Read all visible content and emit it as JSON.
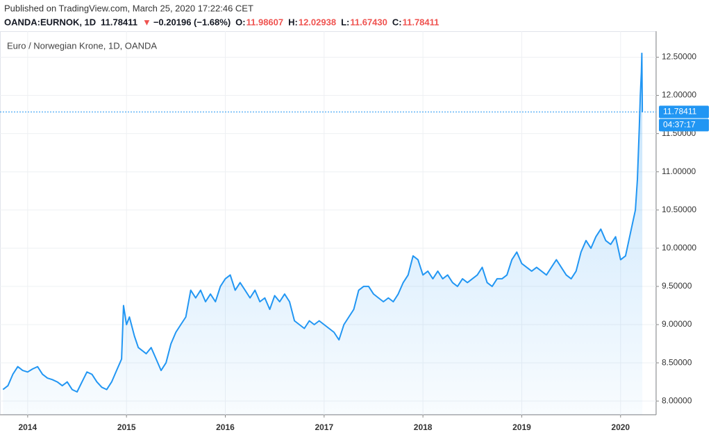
{
  "header": {
    "published": "Published on TradingView.com, March 25, 2020 17:22:46 CET",
    "symbol": "OANDA:EURNOK, 1D",
    "last": "11.78411",
    "arrow": "▼",
    "change": "−0.20196 (−1.68%)",
    "o_label": "O:",
    "o": "11.98607",
    "h_label": "H:",
    "h": "12.02938",
    "l_label": "L:",
    "l": "11.67430",
    "c_label": "C:",
    "c": "11.78411"
  },
  "chart_data": {
    "type": "area",
    "title": "Euro / Norwegian Krone, 1D, OANDA",
    "color": "#2196f3",
    "x": [
      2013.75,
      2013.8,
      2013.85,
      2013.9,
      2013.95,
      2014.0,
      2014.05,
      2014.1,
      2014.15,
      2014.2,
      2014.25,
      2014.3,
      2014.35,
      2014.4,
      2014.45,
      2014.5,
      2014.55,
      2014.6,
      2014.65,
      2014.7,
      2014.75,
      2014.8,
      2014.85,
      2014.9,
      2014.95,
      2014.97,
      2015.0,
      2015.03,
      2015.08,
      2015.12,
      2015.2,
      2015.25,
      2015.3,
      2015.35,
      2015.4,
      2015.45,
      2015.5,
      2015.55,
      2015.6,
      2015.65,
      2015.7,
      2015.75,
      2015.8,
      2015.85,
      2015.9,
      2015.95,
      2016.0,
      2016.05,
      2016.1,
      2016.15,
      2016.2,
      2016.25,
      2016.3,
      2016.35,
      2016.4,
      2016.45,
      2016.5,
      2016.55,
      2016.6,
      2016.65,
      2016.7,
      2016.75,
      2016.8,
      2016.85,
      2016.9,
      2016.95,
      2017.0,
      2017.05,
      2017.1,
      2017.15,
      2017.2,
      2017.25,
      2017.3,
      2017.35,
      2017.4,
      2017.45,
      2017.5,
      2017.55,
      2017.6,
      2017.65,
      2017.7,
      2017.75,
      2017.8,
      2017.85,
      2017.9,
      2017.95,
      2018.0,
      2018.05,
      2018.1,
      2018.15,
      2018.2,
      2018.25,
      2018.3,
      2018.35,
      2018.4,
      2018.45,
      2018.5,
      2018.55,
      2018.6,
      2018.65,
      2018.7,
      2018.75,
      2018.8,
      2018.85,
      2018.9,
      2018.95,
      2019.0,
      2019.05,
      2019.1,
      2019.15,
      2019.2,
      2019.25,
      2019.3,
      2019.35,
      2019.4,
      2019.45,
      2019.5,
      2019.55,
      2019.6,
      2019.65,
      2019.7,
      2019.75,
      2019.8,
      2019.85,
      2019.9,
      2019.95,
      2020.0,
      2020.05,
      2020.1,
      2020.15,
      2020.17,
      2020.19,
      2020.2,
      2020.21,
      2020.215,
      2020.22
    ],
    "values": [
      8.15,
      8.2,
      8.35,
      8.45,
      8.4,
      8.38,
      8.42,
      8.45,
      8.35,
      8.3,
      8.28,
      8.25,
      8.2,
      8.25,
      8.15,
      8.12,
      8.25,
      8.38,
      8.35,
      8.25,
      8.18,
      8.15,
      8.25,
      8.4,
      8.55,
      9.25,
      9.0,
      9.1,
      8.85,
      8.7,
      8.62,
      8.7,
      8.55,
      8.4,
      8.5,
      8.75,
      8.9,
      9.0,
      9.1,
      9.45,
      9.35,
      9.45,
      9.3,
      9.4,
      9.3,
      9.5,
      9.6,
      9.65,
      9.45,
      9.55,
      9.45,
      9.35,
      9.45,
      9.3,
      9.35,
      9.2,
      9.38,
      9.3,
      9.4,
      9.3,
      9.05,
      9.0,
      8.95,
      9.05,
      9.0,
      9.05,
      9.0,
      8.95,
      8.9,
      8.8,
      9.0,
      9.1,
      9.2,
      9.45,
      9.5,
      9.5,
      9.4,
      9.35,
      9.3,
      9.35,
      9.3,
      9.4,
      9.55,
      9.65,
      9.9,
      9.85,
      9.65,
      9.7,
      9.6,
      9.7,
      9.6,
      9.65,
      9.55,
      9.5,
      9.6,
      9.55,
      9.6,
      9.65,
      9.75,
      9.55,
      9.5,
      9.6,
      9.6,
      9.65,
      9.85,
      9.95,
      9.8,
      9.75,
      9.7,
      9.75,
      9.7,
      9.65,
      9.75,
      9.85,
      9.75,
      9.65,
      9.6,
      9.7,
      9.95,
      10.1,
      10.0,
      10.15,
      10.25,
      10.1,
      10.05,
      10.15,
      9.85,
      9.9,
      10.2,
      10.5,
      10.9,
      11.6,
      12.0,
      12.3,
      12.55,
      11.78
    ],
    "last_price": 11.78411,
    "countdown": "04:37:17",
    "xlim": [
      2013.72,
      2020.36
    ],
    "xticks": [
      2014,
      2015,
      2016,
      2017,
      2018,
      2019,
      2020
    ],
    "ylim": [
      7.82,
      12.84
    ],
    "yticks": [
      {
        "value": 8,
        "label": "8.00000"
      },
      {
        "value": 8.5,
        "label": "8.50000"
      },
      {
        "value": 9,
        "label": "9.00000"
      },
      {
        "value": 9.5,
        "label": "9.50000"
      },
      {
        "value": 10,
        "label": "10.00000"
      },
      {
        "value": 10.5,
        "label": "10.50000"
      },
      {
        "value": 11,
        "label": "11.00000"
      },
      {
        "value": 11.5,
        "label": "11.50000"
      },
      {
        "value": 12,
        "label": "12.00000"
      },
      {
        "value": 12.5,
        "label": "12.50000"
      }
    ],
    "grid": true
  }
}
